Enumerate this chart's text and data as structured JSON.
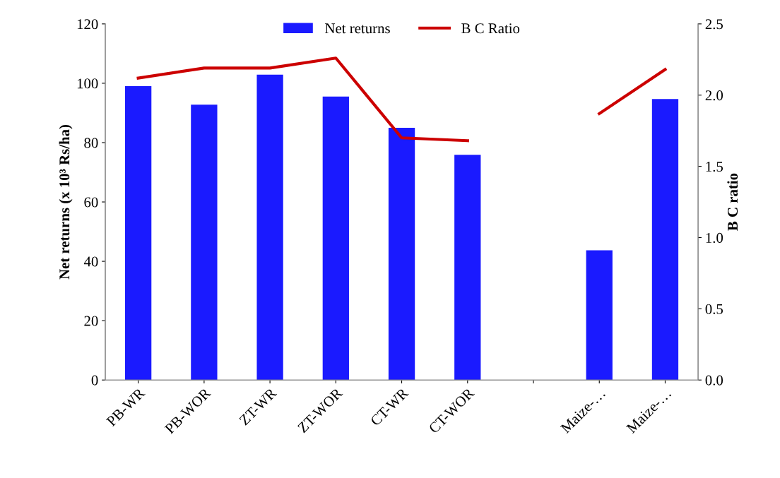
{
  "chart_data": {
    "type": "bar",
    "categories": [
      "PB-WR",
      "PB-WOR",
      "ZT-WR",
      "ZT-WOR",
      "CT-WR",
      "CT-WOR",
      null,
      "Maize-…",
      "Maize-…"
    ],
    "series": [
      {
        "name": "Net returns",
        "color": "#1a1aff",
        "values": [
          99.0,
          92.8,
          102.9,
          95.5,
          85.0,
          75.9,
          null,
          43.7,
          94.7
        ]
      },
      {
        "name": "B C Ratio",
        "type": "line",
        "axis": "y2",
        "color": "#cc0000",
        "values": [
          2.12,
          2.19,
          2.19,
          2.26,
          1.7,
          1.68,
          null,
          1.87,
          2.18
        ]
      }
    ],
    "ylabel": "Net returns (x 10³ Rs/ha)",
    "y2label": "B C ratio",
    "ylim": [
      0,
      120
    ],
    "yticks": [
      0,
      20,
      40,
      60,
      80,
      100,
      120
    ],
    "y2lim": [
      0,
      2.5
    ],
    "y2ticks": [
      {
        "value": 0,
        "label": "0.0"
      },
      {
        "value": 0.5,
        "label": "0.5"
      },
      {
        "value": 1.0,
        "label": "1.0"
      },
      {
        "value": 1.5,
        "label": "1.5"
      },
      {
        "value": 2.0,
        "label": "2.0"
      },
      {
        "value": 2.5,
        "label": "2.5"
      }
    ],
    "legend": "top",
    "grid": false,
    "marker": "none",
    "line_style": "solid"
  }
}
